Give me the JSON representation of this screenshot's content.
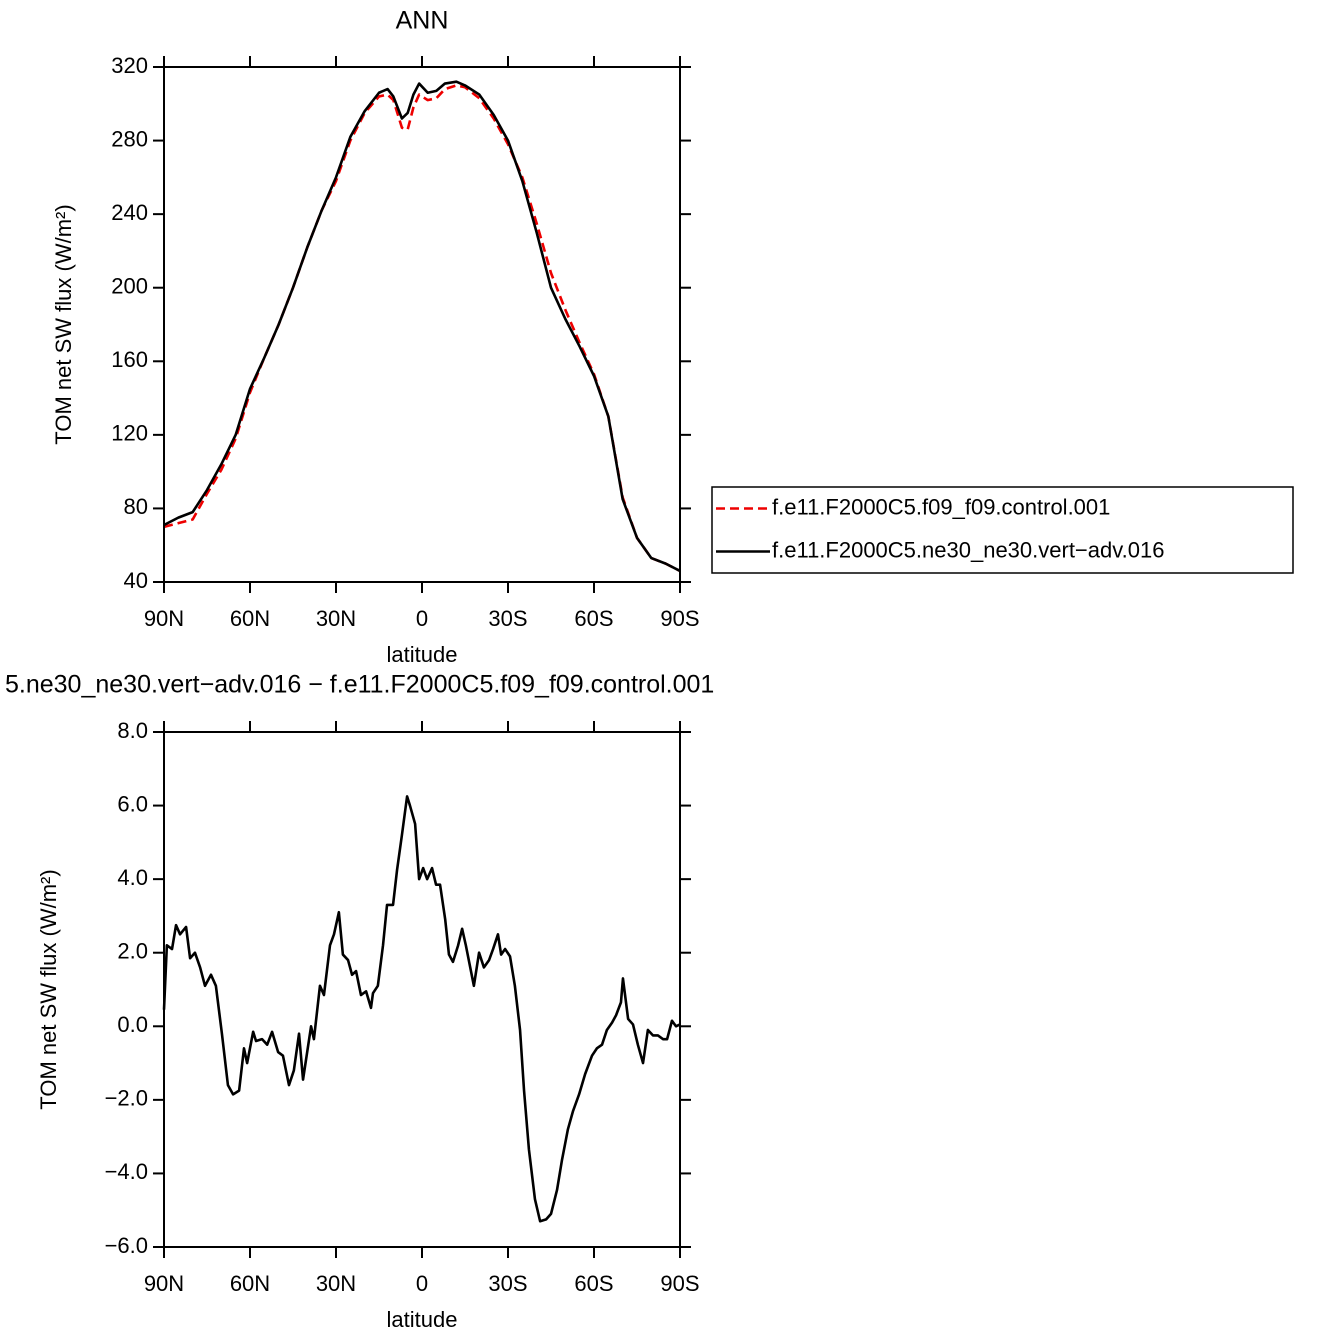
{
  "chart_data": [
    {
      "type": "line",
      "title": "ANN",
      "xlabel": "latitude",
      "ylabel": "TOM net SW flux (W/m²)",
      "x": [
        90,
        85,
        80,
        75,
        70,
        65,
        60,
        55,
        50,
        45,
        40,
        35,
        30,
        25,
        20,
        15,
        12,
        10,
        7,
        5,
        3,
        1,
        -2,
        -5,
        -8,
        -12,
        -15,
        -20,
        -25,
        -30,
        -35,
        -40,
        -45,
        -50,
        -55,
        -60,
        -65,
        -70,
        -75,
        -80,
        -85,
        -90
      ],
      "series": [
        {
          "name": "f.e11.F2000C5.f09_f09.control.001",
          "color": "#ee0000",
          "linestyle": "dashed",
          "values": [
            70,
            72,
            74,
            88,
            101,
            118,
            143,
            162,
            180,
            200,
            222,
            242,
            258,
            280,
            295,
            304,
            305,
            302,
            287,
            286,
            298,
            305,
            302,
            303,
            308,
            310,
            309,
            303,
            292,
            278,
            260,
            235,
            208,
            188,
            170,
            153,
            130,
            86,
            64,
            53,
            50,
            46
          ]
        },
        {
          "name": "f.e11.F2000C5.ne30_ne30.vert−adv.016",
          "color": "#000000",
          "linestyle": "solid",
          "values": [
            71,
            75,
            78,
            90,
            104,
            120,
            145,
            162,
            180,
            200,
            222,
            242,
            260,
            282,
            296,
            306,
            308,
            304,
            292,
            295,
            305,
            311,
            306,
            307,
            311,
            312,
            310,
            305,
            294,
            280,
            258,
            230,
            200,
            183,
            168,
            152,
            130,
            85,
            64,
            53,
            50,
            46
          ]
        }
      ],
      "xlim": [
        90,
        -90
      ],
      "xticks": [
        {
          "value": 90,
          "label": "90N"
        },
        {
          "value": 60,
          "label": "60N"
        },
        {
          "value": 30,
          "label": "30N"
        },
        0,
        {
          "value": -30,
          "label": "30S"
        },
        {
          "value": -60,
          "label": "60S"
        },
        {
          "value": -90,
          "label": "90S"
        }
      ],
      "ylim": [
        40,
        320
      ],
      "yticks": [
        40,
        80,
        120,
        160,
        200,
        240,
        280,
        320
      ],
      "legend": "right"
    },
    {
      "type": "line",
      "title": "5.ne30_ne30.vert−adv.016 − f.e11.F2000C5.f09_f09.control.001",
      "xlabel": "latitude",
      "ylabel": "TOM net SW flux (W/m²)",
      "x": [
        90,
        89.0,
        87.2,
        85.8,
        84.4,
        82.3,
        80.9,
        79.2,
        77.4,
        75.7,
        73.6,
        71.9,
        69.8,
        67.7,
        65.9,
        63.8,
        62.1,
        61.0,
        58.9,
        57.9,
        55.8,
        54.0,
        52.3,
        50.2,
        48.5,
        46.4,
        44.7,
        42.9,
        41.5,
        38.7,
        37.7,
        35.6,
        34.2,
        32.1,
        30.7,
        29.0,
        27.6,
        25.8,
        24.4,
        23.0,
        21.3,
        19.5,
        17.8,
        17.1,
        15.4,
        13.6,
        12.2,
        10.1,
        8.7,
        7.0,
        5.2,
        4.2,
        2.4,
        1.0,
        -0.4,
        -1.8,
        -3.5,
        -4.9,
        -6.3,
        -8.1,
        -9.4,
        -10.8,
        -12.6,
        -14.0,
        -15.3,
        -16.7,
        -18.1,
        -19.9,
        -21.6,
        -23.4,
        -24.8,
        -26.5,
        -27.6,
        -29.0,
        -30.7,
        -32.4,
        -34.2,
        -35.6,
        -37.3,
        -39.4,
        -41.2,
        -43.3,
        -45.0,
        -47.1,
        -48.8,
        -50.9,
        -52.7,
        -54.8,
        -56.9,
        -59.3,
        -61.0,
        -62.8,
        -64.5,
        -66.3,
        -67.7,
        -69.4,
        -70.1,
        -71.9,
        -73.6,
        -75.3,
        -77.1,
        -78.8,
        -80.6,
        -82.3,
        -84.1,
        -85.5,
        -87.2,
        -88.6,
        -90
      ],
      "series": [
        {
          "color": "#000000",
          "linestyle": "solid",
          "values": [
            0.45,
            2.2,
            2.1,
            2.75,
            2.5,
            2.7,
            1.85,
            2.0,
            1.6,
            1.1,
            1.4,
            1.1,
            -0.2,
            -1.6,
            -1.85,
            -1.75,
            -0.6,
            -1.0,
            -0.15,
            -0.4,
            -0.35,
            -0.5,
            -0.15,
            -0.7,
            -0.8,
            -1.6,
            -1.2,
            -0.2,
            -1.45,
            0.0,
            -0.35,
            1.1,
            0.85,
            2.2,
            2.5,
            3.1,
            1.95,
            1.8,
            1.4,
            1.5,
            0.85,
            0.95,
            0.5,
            0.9,
            1.1,
            2.2,
            3.3,
            3.3,
            4.25,
            5.2,
            6.25,
            6.0,
            5.5,
            4.0,
            4.3,
            4.0,
            4.3,
            3.85,
            3.85,
            2.9,
            1.95,
            1.75,
            2.2,
            2.65,
            2.2,
            1.65,
            1.1,
            2.0,
            1.6,
            1.8,
            2.1,
            2.5,
            1.95,
            2.1,
            1.9,
            1.1,
            -0.1,
            -1.75,
            -3.35,
            -4.7,
            -5.3,
            -5.25,
            -5.1,
            -4.45,
            -3.65,
            -2.8,
            -2.3,
            -1.85,
            -1.3,
            -0.8,
            -0.6,
            -0.5,
            -0.1,
            0.1,
            0.3,
            0.65,
            1.3,
            0.2,
            0.05,
            -0.5,
            -1.0,
            -0.1,
            -0.25,
            -0.25,
            -0.35,
            -0.35,
            0.15,
            0.0,
            0.05
          ]
        }
      ],
      "xlim": [
        90,
        -90
      ],
      "xticks": [
        {
          "value": 90,
          "label": "90N"
        },
        {
          "value": 60,
          "label": "60N"
        },
        {
          "value": 30,
          "label": "30N"
        },
        0,
        {
          "value": -30,
          "label": "30S"
        },
        {
          "value": -60,
          "label": "60S"
        },
        {
          "value": -90,
          "label": "90S"
        }
      ],
      "ylim": [
        -6,
        8
      ],
      "yticks": [
        {
          "value": -6,
          "label": "−6.0"
        },
        {
          "value": -4,
          "label": "−4.0"
        },
        {
          "value": -2,
          "label": "−2.0"
        },
        {
          "value": 0,
          "label": "0.0"
        },
        {
          "value": 2,
          "label": "2.0"
        },
        {
          "value": 4,
          "label": "4.0"
        },
        {
          "value": 6,
          "label": "6.0"
        },
        {
          "value": 8,
          "label": "8.0"
        }
      ]
    }
  ]
}
